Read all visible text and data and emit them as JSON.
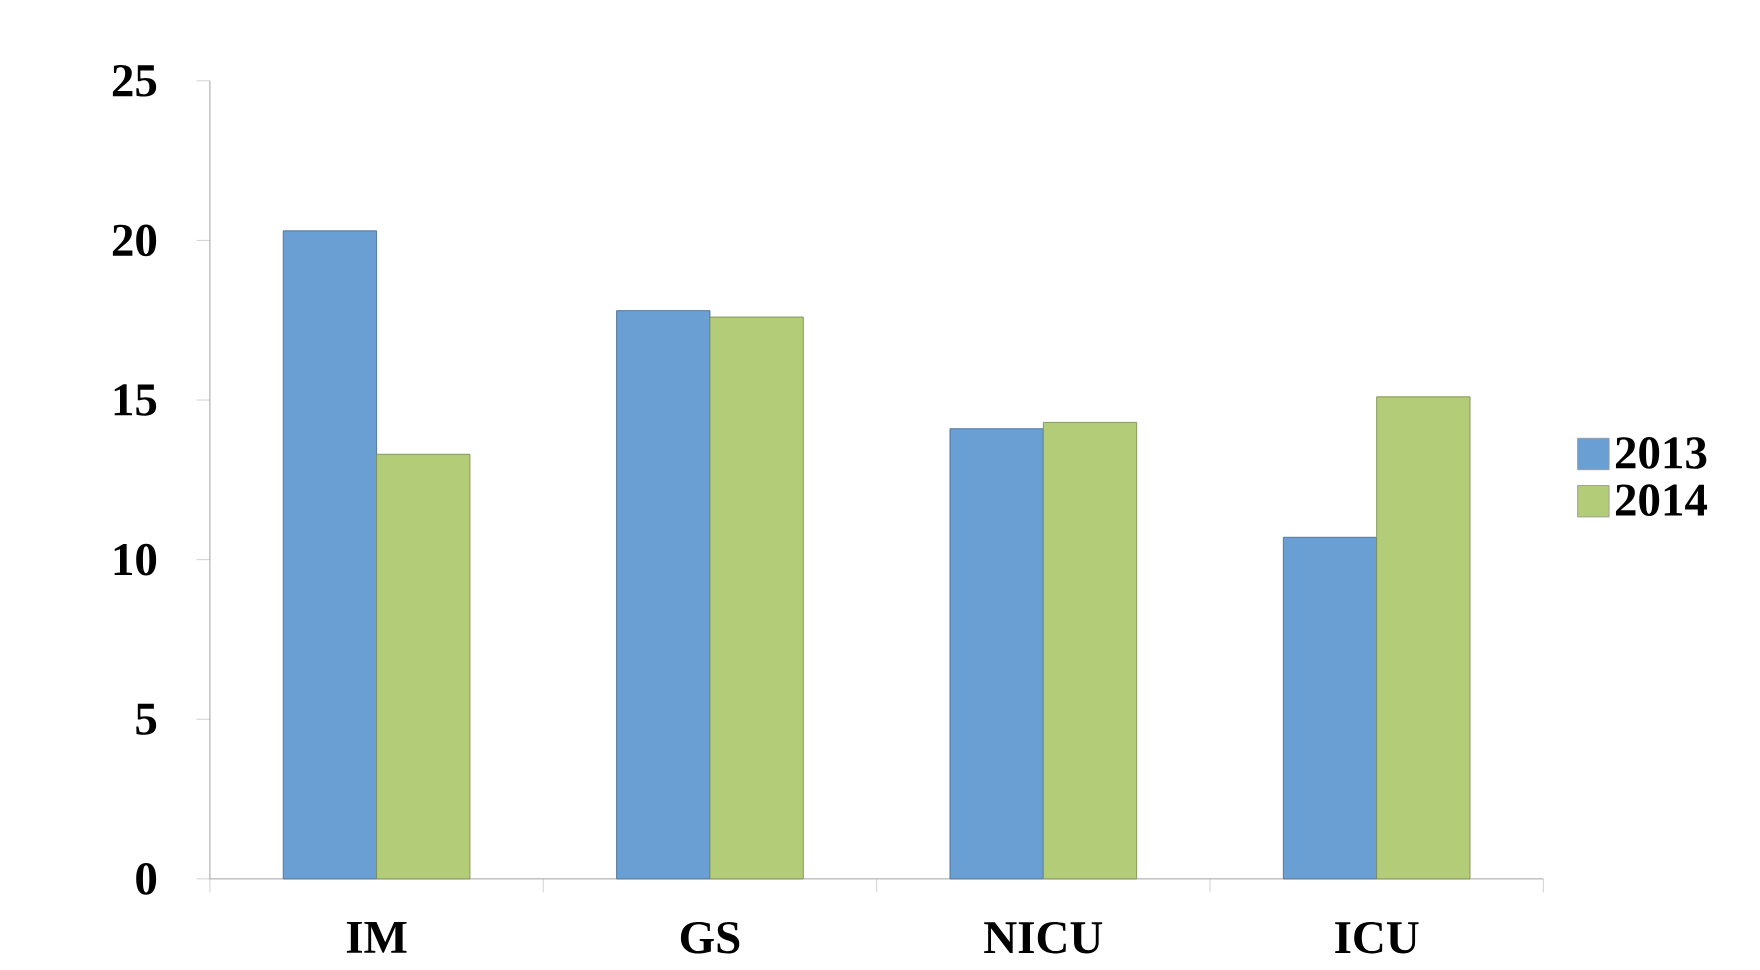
{
  "chart_data": {
    "type": "bar",
    "categories": [
      "IM",
      "GS",
      "NICU",
      "ICU"
    ],
    "series": [
      {
        "name": "2013",
        "color": "#6a9fd4",
        "values": [
          20.3,
          17.8,
          14.1,
          10.7
        ]
      },
      {
        "name": "2014",
        "color": "#b3cc78",
        "values": [
          13.3,
          17.6,
          14.3,
          15.1
        ]
      }
    ],
    "ylim": [
      0,
      25
    ],
    "yticks": [
      0,
      5,
      10,
      15,
      20,
      25
    ],
    "legend": "right"
  }
}
